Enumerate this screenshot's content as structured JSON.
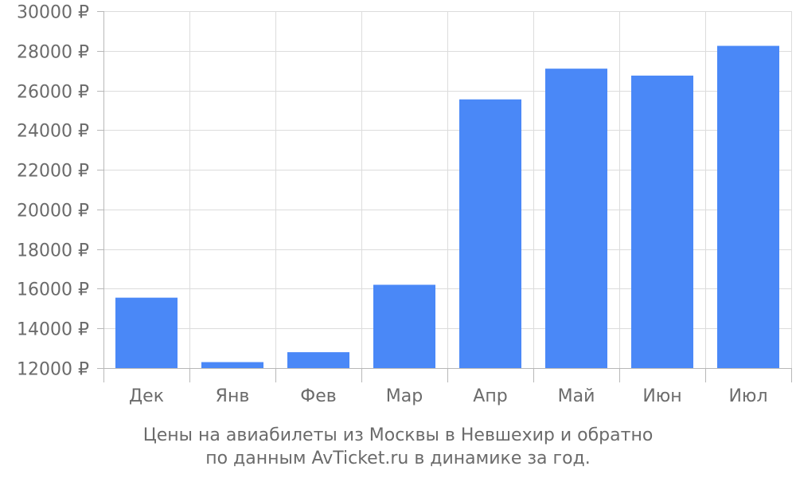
{
  "chart_data": {
    "type": "bar",
    "categories": [
      "Дек",
      "Янв",
      "Фев",
      "Мар",
      "Апр",
      "Май",
      "Июн",
      "Июл"
    ],
    "values": [
      15550,
      12300,
      12800,
      16200,
      25550,
      27100,
      26750,
      28250
    ],
    "ylim": [
      12000,
      30000
    ],
    "yticks": [
      12000,
      14000,
      16000,
      18000,
      20000,
      22000,
      24000,
      26000,
      28000,
      30000
    ],
    "ytick_labels": [
      "12000 ₽",
      "14000 ₽",
      "16000 ₽",
      "18000 ₽",
      "20000 ₽",
      "22000 ₽",
      "24000 ₽",
      "26000 ₽",
      "28000 ₽",
      "30000 ₽"
    ],
    "grid": true,
    "bar_color": "#4a88f7",
    "caption_line1": "Цены на авиабилеты из Москвы в Невшехир и обратно",
    "caption_line2": "по данным AvTicket.ru в динамике за год."
  }
}
